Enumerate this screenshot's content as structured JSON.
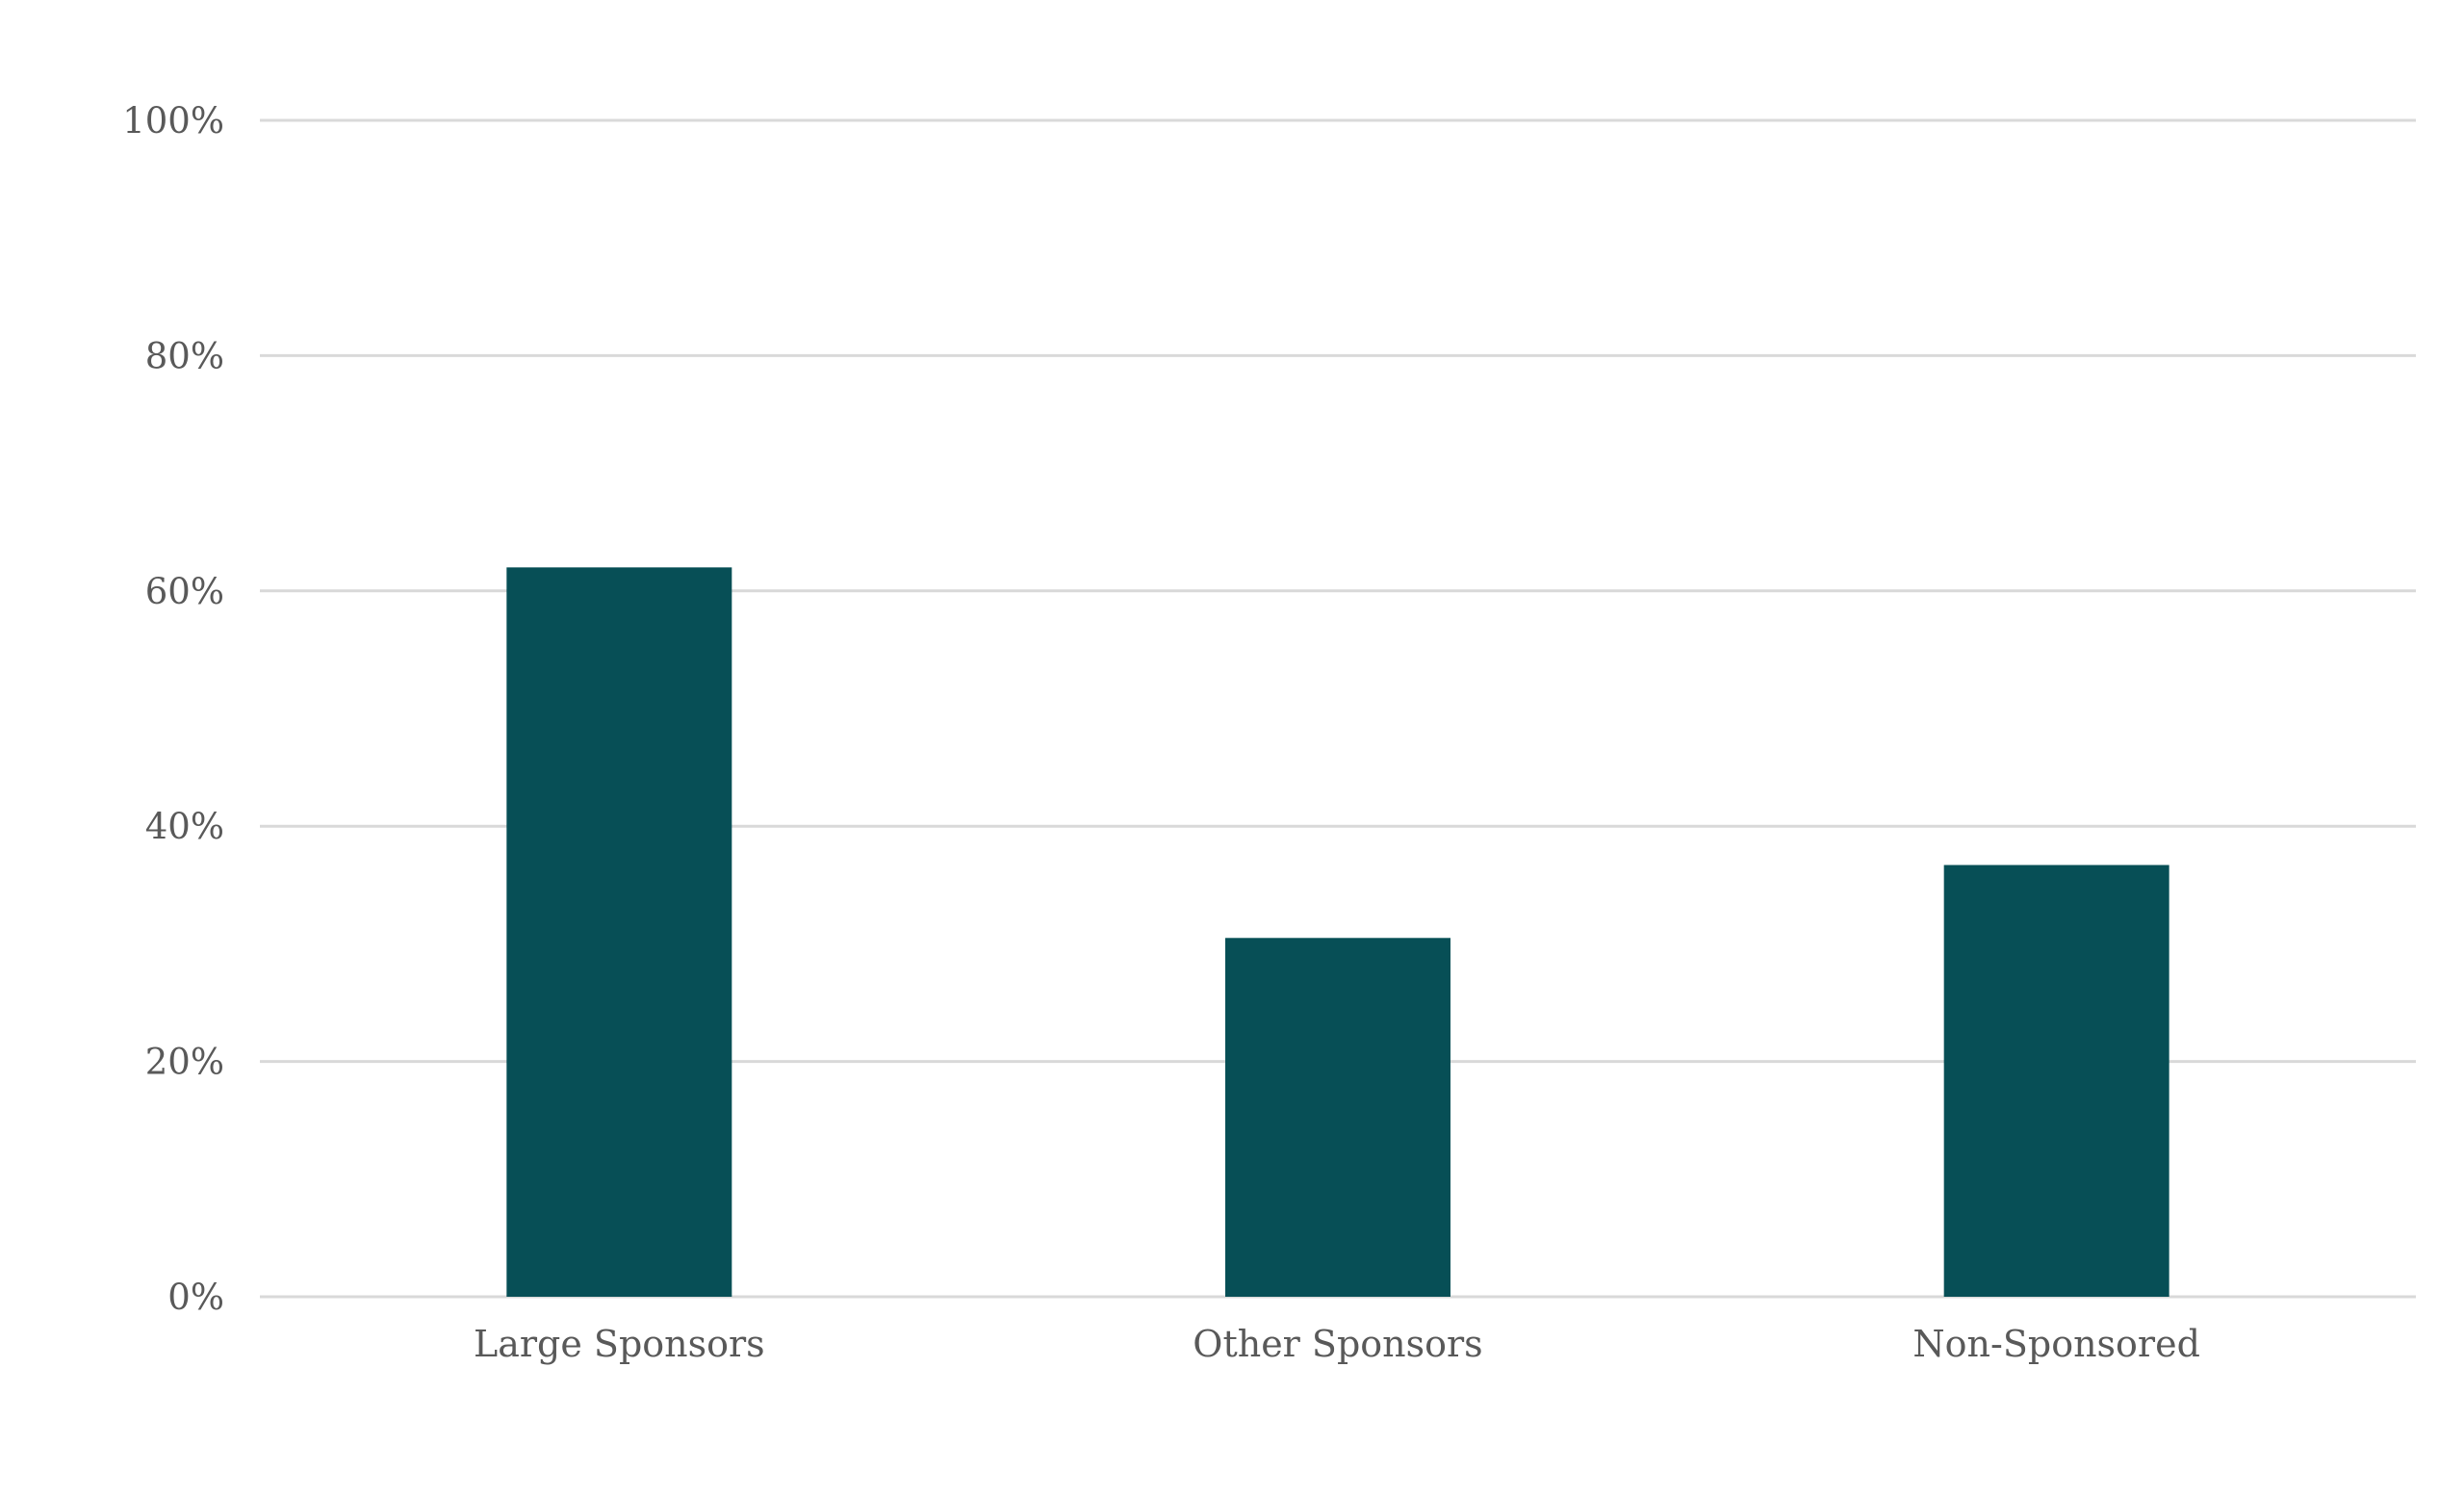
{
  "chart_data": {
    "type": "bar",
    "categories": [
      "Large Sponsors",
      "Other Sponsors",
      "Non-Sponsored"
    ],
    "series": [
      {
        "values": [
          62,
          30.5,
          36.7
        ],
        "color": "#074f56"
      }
    ],
    "ylim": [
      0,
      100
    ],
    "yticks": [
      0,
      20,
      40,
      60,
      80,
      100
    ],
    "ytick_labels": [
      "0%",
      "20%",
      "40%",
      "60%",
      "80%",
      "100%"
    ],
    "grid": true,
    "legend": "none",
    "grid_color": "#d9d9d9",
    "text_color": "#595959"
  }
}
